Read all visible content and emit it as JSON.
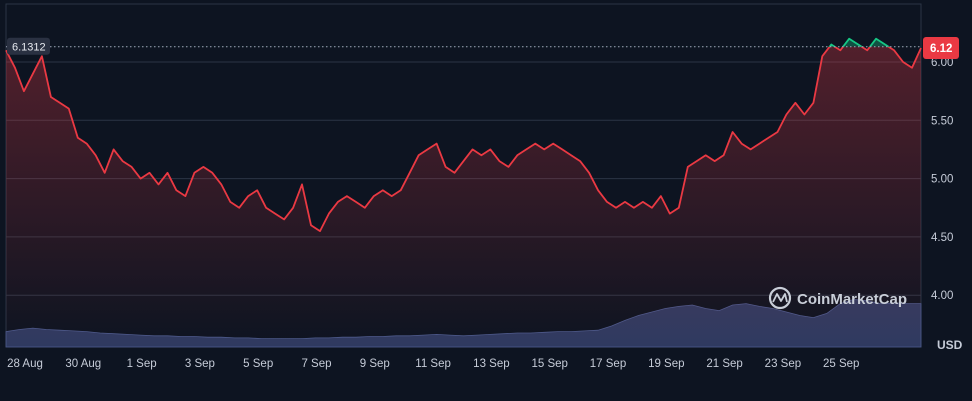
{
  "chart_data": {
    "type": "line",
    "title": "",
    "xlabel": "",
    "ylabel": "",
    "x_tick_labels": [
      "28 Aug",
      "30 Aug",
      "1 Sep",
      "3 Sep",
      "5 Sep",
      "7 Sep",
      "9 Sep",
      "11 Sep",
      "13 Sep",
      "15 Sep",
      "17 Sep",
      "19 Sep",
      "21 Sep",
      "23 Sep",
      "25 Sep"
    ],
    "y_tick_labels": [
      "4.00",
      "4.50",
      "5.00",
      "5.50",
      "6.00"
    ],
    "ylim": [
      3.55,
      6.6
    ],
    "xlim": [
      0,
      30.6
    ],
    "grid": true,
    "reference_line": {
      "value": 6.1312,
      "label": "6.1312"
    },
    "current_price": {
      "value": 6.12,
      "label": "6.12"
    },
    "volume_axis_label": "USD",
    "series": [
      {
        "values": [
          [
            0.0,
            6.1
          ],
          [
            0.3,
            5.95
          ],
          [
            0.6,
            5.75
          ],
          [
            0.9,
            5.9
          ],
          [
            1.2,
            6.05
          ],
          [
            1.5,
            5.7
          ],
          [
            1.8,
            5.65
          ],
          [
            2.1,
            5.6
          ],
          [
            2.4,
            5.35
          ],
          [
            2.7,
            5.3
          ],
          [
            3.0,
            5.2
          ],
          [
            3.3,
            5.05
          ],
          [
            3.6,
            5.25
          ],
          [
            3.9,
            5.15
          ],
          [
            4.2,
            5.1
          ],
          [
            4.5,
            5.0
          ],
          [
            4.8,
            5.05
          ],
          [
            5.1,
            4.95
          ],
          [
            5.4,
            5.05
          ],
          [
            5.7,
            4.9
          ],
          [
            6.0,
            4.85
          ],
          [
            6.3,
            5.05
          ],
          [
            6.6,
            5.1
          ],
          [
            6.9,
            5.05
          ],
          [
            7.2,
            4.95
          ],
          [
            7.5,
            4.8
          ],
          [
            7.8,
            4.75
          ],
          [
            8.1,
            4.85
          ],
          [
            8.4,
            4.9
          ],
          [
            8.7,
            4.75
          ],
          [
            9.0,
            4.7
          ],
          [
            9.3,
            4.65
          ],
          [
            9.6,
            4.75
          ],
          [
            9.9,
            4.95
          ],
          [
            10.2,
            4.6
          ],
          [
            10.5,
            4.55
          ],
          [
            10.8,
            4.7
          ],
          [
            11.1,
            4.8
          ],
          [
            11.4,
            4.85
          ],
          [
            11.7,
            4.8
          ],
          [
            12.0,
            4.75
          ],
          [
            12.3,
            4.85
          ],
          [
            12.6,
            4.9
          ],
          [
            12.9,
            4.85
          ],
          [
            13.2,
            4.9
          ],
          [
            13.5,
            5.05
          ],
          [
            13.8,
            5.2
          ],
          [
            14.1,
            5.25
          ],
          [
            14.4,
            5.3
          ],
          [
            14.7,
            5.1
          ],
          [
            15.0,
            5.05
          ],
          [
            15.3,
            5.15
          ],
          [
            15.6,
            5.25
          ],
          [
            15.9,
            5.2
          ],
          [
            16.2,
            5.25
          ],
          [
            16.5,
            5.15
          ],
          [
            16.8,
            5.1
          ],
          [
            17.1,
            5.2
          ],
          [
            17.4,
            5.25
          ],
          [
            17.7,
            5.3
          ],
          [
            18.0,
            5.25
          ],
          [
            18.3,
            5.3
          ],
          [
            18.6,
            5.25
          ],
          [
            18.9,
            5.2
          ],
          [
            19.2,
            5.15
          ],
          [
            19.5,
            5.05
          ],
          [
            19.8,
            4.9
          ],
          [
            20.1,
            4.8
          ],
          [
            20.4,
            4.75
          ],
          [
            20.7,
            4.8
          ],
          [
            21.0,
            4.75
          ],
          [
            21.3,
            4.8
          ],
          [
            21.6,
            4.75
          ],
          [
            21.9,
            4.85
          ],
          [
            22.2,
            4.7
          ],
          [
            22.5,
            4.75
          ],
          [
            22.8,
            5.1
          ],
          [
            23.1,
            5.15
          ],
          [
            23.4,
            5.2
          ],
          [
            23.7,
            5.15
          ],
          [
            24.0,
            5.2
          ],
          [
            24.3,
            5.4
          ],
          [
            24.6,
            5.3
          ],
          [
            24.9,
            5.25
          ],
          [
            25.2,
            5.3
          ],
          [
            25.5,
            5.35
          ],
          [
            25.8,
            5.4
          ],
          [
            26.1,
            5.55
          ],
          [
            26.4,
            5.65
          ],
          [
            26.7,
            5.55
          ],
          [
            27.0,
            5.65
          ],
          [
            27.3,
            6.05
          ],
          [
            27.6,
            6.15
          ],
          [
            27.9,
            6.1
          ],
          [
            28.2,
            6.2
          ],
          [
            28.5,
            6.15
          ],
          [
            28.8,
            6.1
          ],
          [
            29.1,
            6.2
          ],
          [
            29.4,
            6.15
          ],
          [
            29.7,
            6.1
          ],
          [
            30.0,
            6.0
          ],
          [
            30.3,
            5.95
          ],
          [
            30.6,
            6.12
          ]
        ]
      }
    ],
    "volume": [
      0.22,
      0.25,
      0.27,
      0.25,
      0.24,
      0.23,
      0.22,
      0.2,
      0.19,
      0.18,
      0.17,
      0.16,
      0.16,
      0.15,
      0.15,
      0.14,
      0.14,
      0.13,
      0.13,
      0.12,
      0.12,
      0.12,
      0.12,
      0.13,
      0.13,
      0.14,
      0.14,
      0.15,
      0.15,
      0.16,
      0.16,
      0.17,
      0.18,
      0.17,
      0.16,
      0.17,
      0.18,
      0.19,
      0.2,
      0.2,
      0.21,
      0.22,
      0.22,
      0.23,
      0.24,
      0.3,
      0.38,
      0.45,
      0.5,
      0.55,
      0.58,
      0.6,
      0.55,
      0.52,
      0.6,
      0.62,
      0.58,
      0.55,
      0.5,
      0.45,
      0.42,
      0.48,
      0.62,
      0.68,
      0.66,
      0.62,
      0.63,
      0.62,
      0.62
    ],
    "colors": {
      "below_reference": "#ea3943",
      "above_reference": "#16c784",
      "background": "#0d1421",
      "grid": "#2b3545",
      "tick_text": "#c6ccd8",
      "volume_fill": "#3b4775"
    }
  },
  "watermark": {
    "icon": "coinmarketcap-logo-icon",
    "text": "CoinMarketCap"
  }
}
